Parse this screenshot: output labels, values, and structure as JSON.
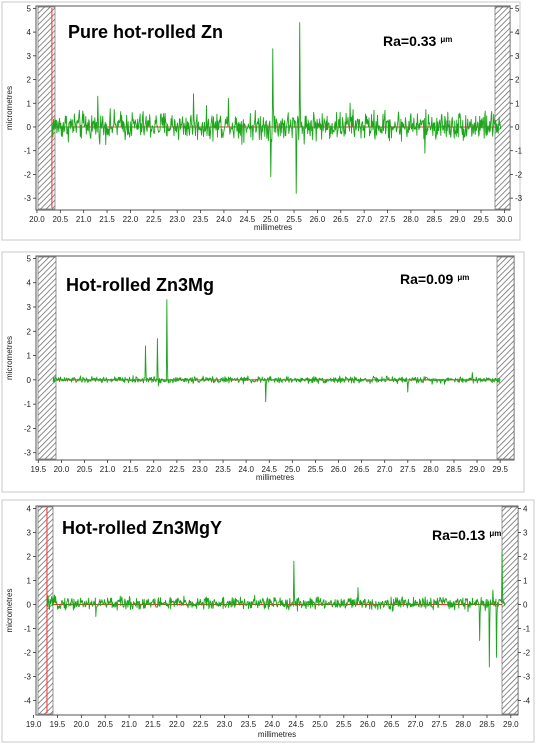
{
  "colors": {
    "trace": "#1aa51a",
    "zero_line": "#ff2a2a",
    "frame": "#555555",
    "hatch": "#6f6f6f"
  },
  "chart_data": [
    {
      "type": "line",
      "title": "Pure hot-rolled Zn",
      "ra_value": "Ra=0.33",
      "ra_unit": "μm",
      "xlabel": "millimetres",
      "ylabel": "micrometres",
      "xlim": [
        19.98,
        30.12
      ],
      "ylim": [
        -3.5,
        5.1
      ],
      "xticks": [
        "20.0",
        "20.5",
        "21.0",
        "21.5",
        "22.0",
        "22.5",
        "23.0",
        "23.5",
        "24.0",
        "24.5",
        "25.0",
        "25.5",
        "26.0",
        "26.5",
        "27.0",
        "27.5",
        "28.0",
        "28.5",
        "29.0",
        "29.5",
        "30.0"
      ],
      "yticks": [
        "5",
        "4",
        "3",
        "2",
        "1",
        "0",
        "-1",
        "-2",
        "-3"
      ],
      "right_yticks": [
        "5",
        "4",
        "3",
        "2",
        "1",
        "0",
        "-1",
        "-2",
        "-3"
      ],
      "data_range": [
        20.32,
        29.92
      ],
      "noise_amplitude": 0.45,
      "mean": 0.05,
      "peaks": [
        [
          25.05,
          3.3
        ],
        [
          25.62,
          4.4
        ],
        [
          25.55,
          -2.8
        ],
        [
          25.0,
          -2.1
        ],
        [
          21.3,
          1.3
        ],
        [
          23.35,
          1.4
        ],
        [
          24.1,
          1.2
        ],
        [
          28.3,
          -1.1
        ],
        [
          26.7,
          1.0
        ]
      ],
      "marker_x": 20.32
    },
    {
      "type": "line",
      "title": "Hot-rolled Zn3Mg",
      "ra_value": "Ra=0.09",
      "ra_unit": "μm",
      "xlabel": "millimetres",
      "ylabel": "micrometres",
      "xlim": [
        19.45,
        29.8
      ],
      "ylim": [
        -3.3,
        5.1
      ],
      "xticks": [
        "19.5",
        "20.0",
        "20.5",
        "21.0",
        "21.5",
        "22.0",
        "22.5",
        "23.0",
        "23.5",
        "24.0",
        "24.5",
        "25.0",
        "25.5",
        "26.0",
        "26.5",
        "27.0",
        "27.5",
        "28.0",
        "28.5",
        "29.0",
        "29.5"
      ],
      "yticks": [
        "5",
        "4",
        "3",
        "2",
        "1",
        "0",
        "-1",
        "-2",
        "-3"
      ],
      "right_yticks": [],
      "data_range": [
        19.82,
        29.5
      ],
      "noise_amplitude": 0.1,
      "mean": 0.0,
      "peaks": [
        [
          21.82,
          1.4
        ],
        [
          22.08,
          1.7
        ],
        [
          22.28,
          3.3
        ],
        [
          24.42,
          -0.9
        ],
        [
          22.1,
          -0.25
        ],
        [
          27.5,
          -0.5
        ],
        [
          28.9,
          0.3
        ]
      ],
      "marker_x": null
    },
    {
      "type": "line",
      "title": "Hot-rolled Zn3MgY",
      "ra_value": "Ra=0.13",
      "ra_unit": "μm",
      "xlabel": "millimetres",
      "ylabel": "micrometres",
      "xlim": [
        19.05,
        29.15
      ],
      "ylim": [
        -4.6,
        4.1
      ],
      "xticks": [
        "19.0",
        "19.5",
        "20.0",
        "20.5",
        "21.0",
        "21.5",
        "22.0",
        "22.5",
        "23.0",
        "23.5",
        "24.0",
        "24.5",
        "25.0",
        "25.5",
        "26.0",
        "26.5",
        "27.0",
        "27.5",
        "28.0",
        "28.5",
        "29.0"
      ],
      "yticks": [
        "4",
        "3",
        "2",
        "1",
        "0",
        "-1",
        "-2",
        "-3",
        "-4"
      ],
      "right_yticks": [
        "4",
        "3",
        "2",
        "1",
        "0",
        "-1",
        "-2",
        "-3",
        "-4"
      ],
      "data_range": [
        19.28,
        28.88
      ],
      "noise_amplitude": 0.2,
      "mean": 0.05,
      "peaks": [
        [
          24.45,
          1.8
        ],
        [
          25.8,
          0.7
        ],
        [
          28.35,
          -1.5
        ],
        [
          28.55,
          -2.6
        ],
        [
          28.7,
          -2.2
        ],
        [
          28.82,
          2.2
        ],
        [
          28.62,
          0.6
        ],
        [
          20.3,
          -0.5
        ]
      ],
      "marker_x": 19.28
    }
  ]
}
